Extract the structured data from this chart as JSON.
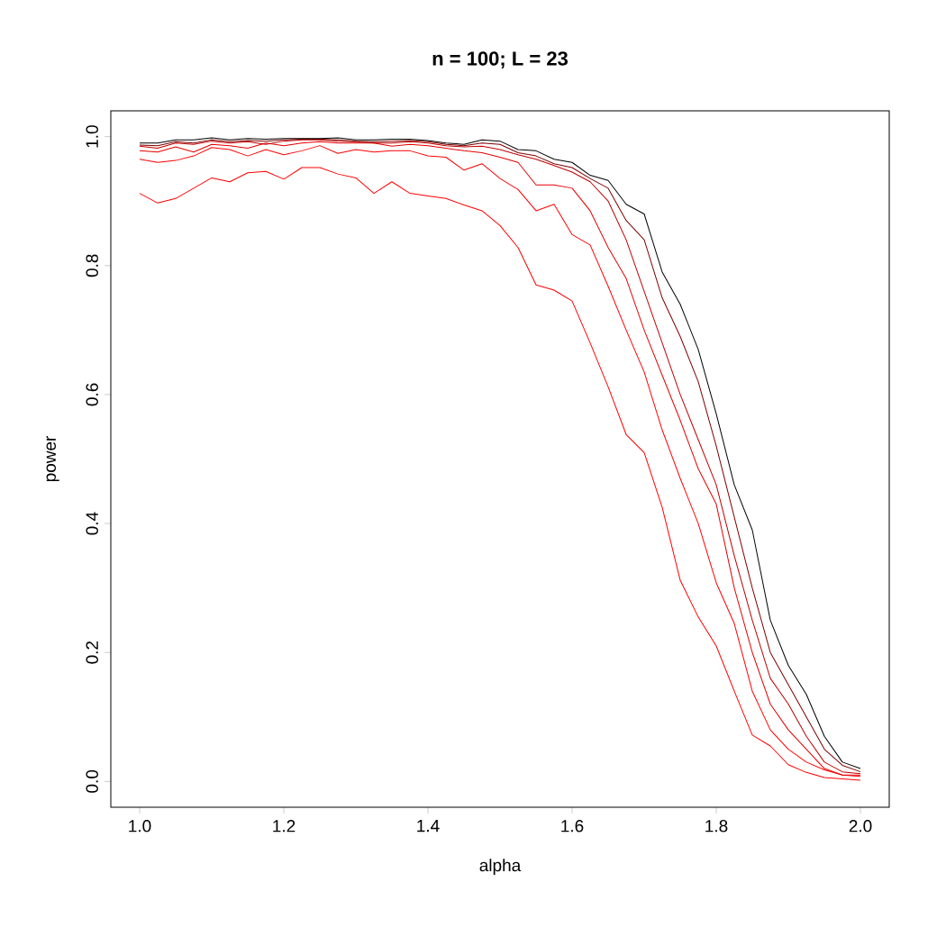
{
  "chart_data": {
    "type": "line",
    "title": "n = 100; L = 23",
    "xlabel": "alpha",
    "ylabel": "power",
    "x": [
      1.0,
      1.025,
      1.05,
      1.075,
      1.1,
      1.125,
      1.15,
      1.175,
      1.2,
      1.225,
      1.25,
      1.275,
      1.3,
      1.325,
      1.35,
      1.375,
      1.4,
      1.425,
      1.45,
      1.475,
      1.5,
      1.525,
      1.55,
      1.575,
      1.6,
      1.625,
      1.65,
      1.675,
      1.7,
      1.725,
      1.75,
      1.775,
      1.8,
      1.825,
      1.85,
      1.875,
      1.9,
      1.925,
      1.95,
      1.975,
      2.0
    ],
    "xlim": [
      0.96,
      2.04
    ],
    "ylim": [
      -0.04,
      1.04
    ],
    "xticks": [
      {
        "value": 1.0,
        "label": "1.0"
      },
      1.2,
      1.4,
      1.6,
      1.8,
      {
        "value": 2.0,
        "label": "2.0"
      }
    ],
    "yticks": [
      {
        "value": 0.0,
        "label": "0.0"
      },
      0.2,
      0.4,
      0.6,
      0.8,
      {
        "value": 1.0,
        "label": "1.0"
      }
    ],
    "grid": false,
    "legend": false,
    "marker": "none",
    "line_style": "solid",
    "series": [
      {
        "color": "#ff0000",
        "values": [
          0.912,
          0.897,
          0.904,
          0.92,
          0.936,
          0.93,
          0.944,
          0.946,
          0.934,
          0.952,
          0.952,
          0.942,
          0.936,
          0.912,
          0.93,
          0.912,
          0.908,
          0.904,
          0.894,
          0.885,
          0.862,
          0.828,
          0.77,
          0.762,
          0.745,
          0.68,
          0.612,
          0.538,
          0.51,
          0.425,
          0.312,
          0.255,
          0.21,
          0.14,
          0.072,
          0.055,
          0.026,
          0.014,
          0.006,
          0.004,
          0.002
        ]
      },
      {
        "color": "#ff0000",
        "values": [
          0.965,
          0.96,
          0.963,
          0.97,
          0.983,
          0.98,
          0.97,
          0.98,
          0.972,
          0.978,
          0.986,
          0.974,
          0.98,
          0.976,
          0.978,
          0.978,
          0.97,
          0.968,
          0.948,
          0.958,
          0.935,
          0.918,
          0.885,
          0.895,
          0.848,
          0.832,
          0.768,
          0.7,
          0.635,
          0.545,
          0.47,
          0.4,
          0.308,
          0.245,
          0.14,
          0.08,
          0.05,
          0.03,
          0.018,
          0.01,
          0.008
        ]
      },
      {
        "color": "#e60000",
        "values": [
          0.978,
          0.976,
          0.984,
          0.976,
          0.988,
          0.986,
          0.982,
          0.99,
          0.986,
          0.99,
          0.992,
          0.99,
          0.99,
          0.99,
          0.985,
          0.988,
          0.986,
          0.982,
          0.978,
          0.975,
          0.968,
          0.96,
          0.925,
          0.925,
          0.92,
          0.885,
          0.828,
          0.78,
          0.7,
          0.63,
          0.56,
          0.485,
          0.43,
          0.3,
          0.2,
          0.12,
          0.08,
          0.05,
          0.02,
          0.01,
          0.01
        ]
      },
      {
        "color": "#c00000",
        "values": [
          0.985,
          0.982,
          0.99,
          0.988,
          0.993,
          0.99,
          0.992,
          0.988,
          0.993,
          0.995,
          0.995,
          0.993,
          0.992,
          0.99,
          0.99,
          0.992,
          0.99,
          0.986,
          0.984,
          0.985,
          0.98,
          0.972,
          0.965,
          0.955,
          0.945,
          0.93,
          0.9,
          0.84,
          0.76,
          0.68,
          0.6,
          0.53,
          0.46,
          0.35,
          0.25,
          0.16,
          0.12,
          0.07,
          0.03,
          0.015,
          0.012
        ]
      },
      {
        "color": "#800000",
        "values": [
          0.987,
          0.986,
          0.992,
          0.99,
          0.995,
          0.992,
          0.994,
          0.993,
          0.995,
          0.996,
          0.996,
          0.995,
          0.993,
          0.992,
          0.993,
          0.994,
          0.992,
          0.988,
          0.986,
          0.99,
          0.988,
          0.975,
          0.97,
          0.958,
          0.952,
          0.935,
          0.92,
          0.87,
          0.84,
          0.75,
          0.69,
          0.62,
          0.52,
          0.41,
          0.3,
          0.2,
          0.15,
          0.1,
          0.05,
          0.025,
          0.015
        ]
      },
      {
        "color": "#000000",
        "values": [
          0.99,
          0.99,
          0.995,
          0.995,
          0.998,
          0.995,
          0.997,
          0.996,
          0.997,
          0.997,
          0.997,
          0.998,
          0.995,
          0.995,
          0.996,
          0.996,
          0.994,
          0.99,
          0.988,
          0.995,
          0.993,
          0.98,
          0.978,
          0.965,
          0.96,
          0.94,
          0.932,
          0.895,
          0.88,
          0.79,
          0.74,
          0.67,
          0.57,
          0.46,
          0.39,
          0.25,
          0.18,
          0.135,
          0.07,
          0.03,
          0.02
        ]
      }
    ]
  }
}
